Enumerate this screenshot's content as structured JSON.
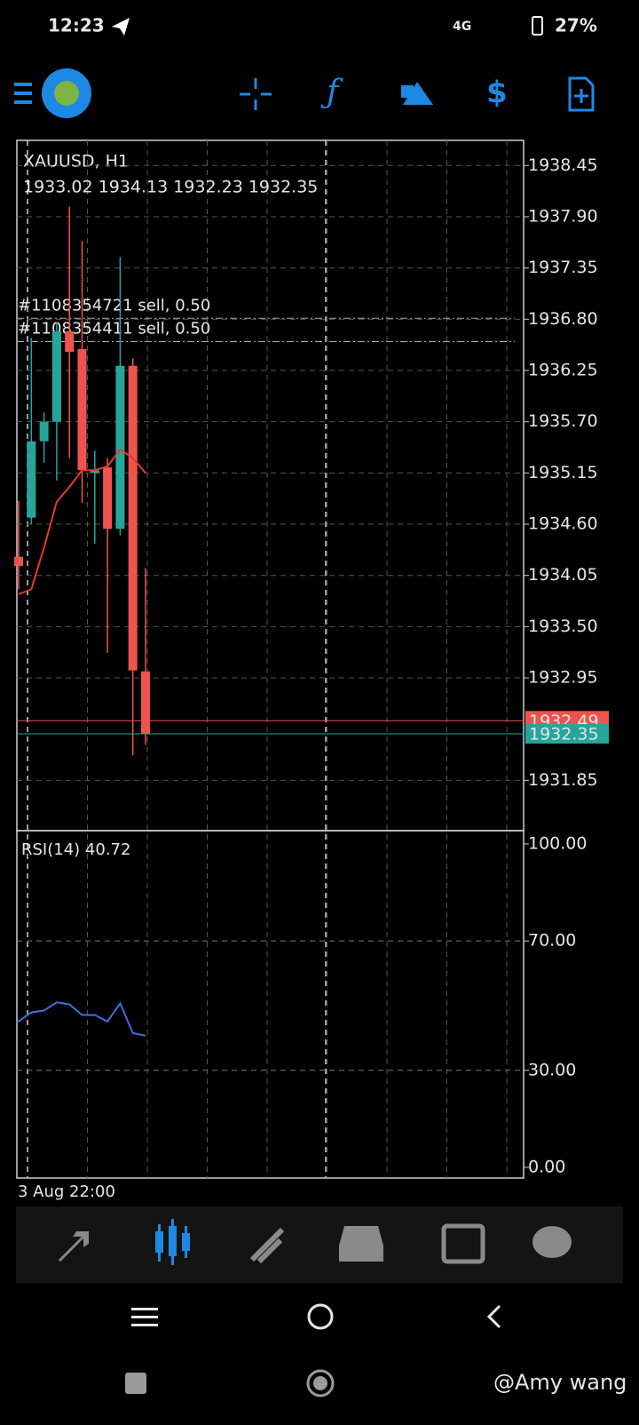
{
  "status_bar": {
    "time": "12:23",
    "network": "4G",
    "battery": "27%"
  },
  "chart": {
    "symbol": "XAUUSD, H1",
    "ohlc_text": "1933.02 1934.13 1932.23 1932.35",
    "orders": [
      {
        "label": "#1108354721 sell, 0.50",
        "price": 1936.81
      },
      {
        "label": "#1108354411 sell, 0.50",
        "price": 1936.56
      }
    ],
    "ylim": [
      1931.31,
      1938.72
    ],
    "yticks": [
      1938.45,
      {
        "value": 1937.9,
        "label": "1937.90"
      },
      1937.35,
      {
        "value": 1936.8,
        "label": "1936.80"
      },
      1936.25,
      {
        "value": 1935.7,
        "label": "1935.70"
      },
      1935.15,
      {
        "value": 1934.6,
        "label": "1934.60"
      },
      1934.05,
      {
        "value": 1933.5,
        "label": "1933.50"
      },
      1932.95,
      1931.85
    ],
    "ask": 1932.49,
    "bid": 1932.35,
    "up_color": "#26a69a",
    "down_color": "#ef5350",
    "candles": [
      {
        "o": 1934.25,
        "h": 1934.85,
        "l": 1933.9,
        "c": 1934.15
      },
      {
        "o": 1934.67,
        "h": 1936.6,
        "l": 1934.6,
        "c": 1935.49
      },
      {
        "o": 1935.49,
        "h": 1935.8,
        "l": 1935.26,
        "c": 1935.7
      },
      {
        "o": 1935.7,
        "h": 1936.77,
        "l": 1935.07,
        "c": 1936.67
      },
      {
        "o": 1936.67,
        "h": 1938.01,
        "l": 1935.31,
        "c": 1936.45
      },
      {
        "o": 1936.48,
        "h": 1937.64,
        "l": 1934.83,
        "c": 1935.18
      },
      {
        "o": 1935.15,
        "h": 1935.39,
        "l": 1934.39,
        "c": 1935.18
      },
      {
        "o": 1935.21,
        "h": 1935.31,
        "l": 1933.22,
        "c": 1934.55
      },
      {
        "o": 1934.55,
        "h": 1937.47,
        "l": 1934.48,
        "c": 1936.3
      },
      {
        "o": 1936.3,
        "h": 1936.38,
        "l": 1932.12,
        "c": 1933.03
      },
      {
        "o": 1933.02,
        "h": 1934.13,
        "l": 1932.23,
        "c": 1932.35
      }
    ],
    "ma_color": "#e53935",
    "ma": [
      1933.85,
      1933.9,
      1934.35,
      1934.84,
      1935.0,
      1935.18,
      1935.18,
      1935.22,
      1935.4,
      1935.31,
      1935.15
    ],
    "date_label": "3 Aug 22:00"
  },
  "rsi": {
    "label": "RSI(14) 40.72",
    "color": "#3f6fd8",
    "ylim": [
      -3.3,
      104.1
    ],
    "yticks": [
      {
        "value": 100,
        "label": "100.00"
      },
      {
        "value": 70,
        "label": "70.00"
      },
      {
        "value": 30,
        "label": "30.00"
      },
      {
        "value": 0,
        "label": "0.00"
      }
    ],
    "values": [
      44.8,
      47.9,
      48.5,
      51.0,
      50.4,
      47.1,
      47.1,
      45.1,
      50.7,
      41.5,
      40.72
    ]
  },
  "watermark": "@Amy wang"
}
